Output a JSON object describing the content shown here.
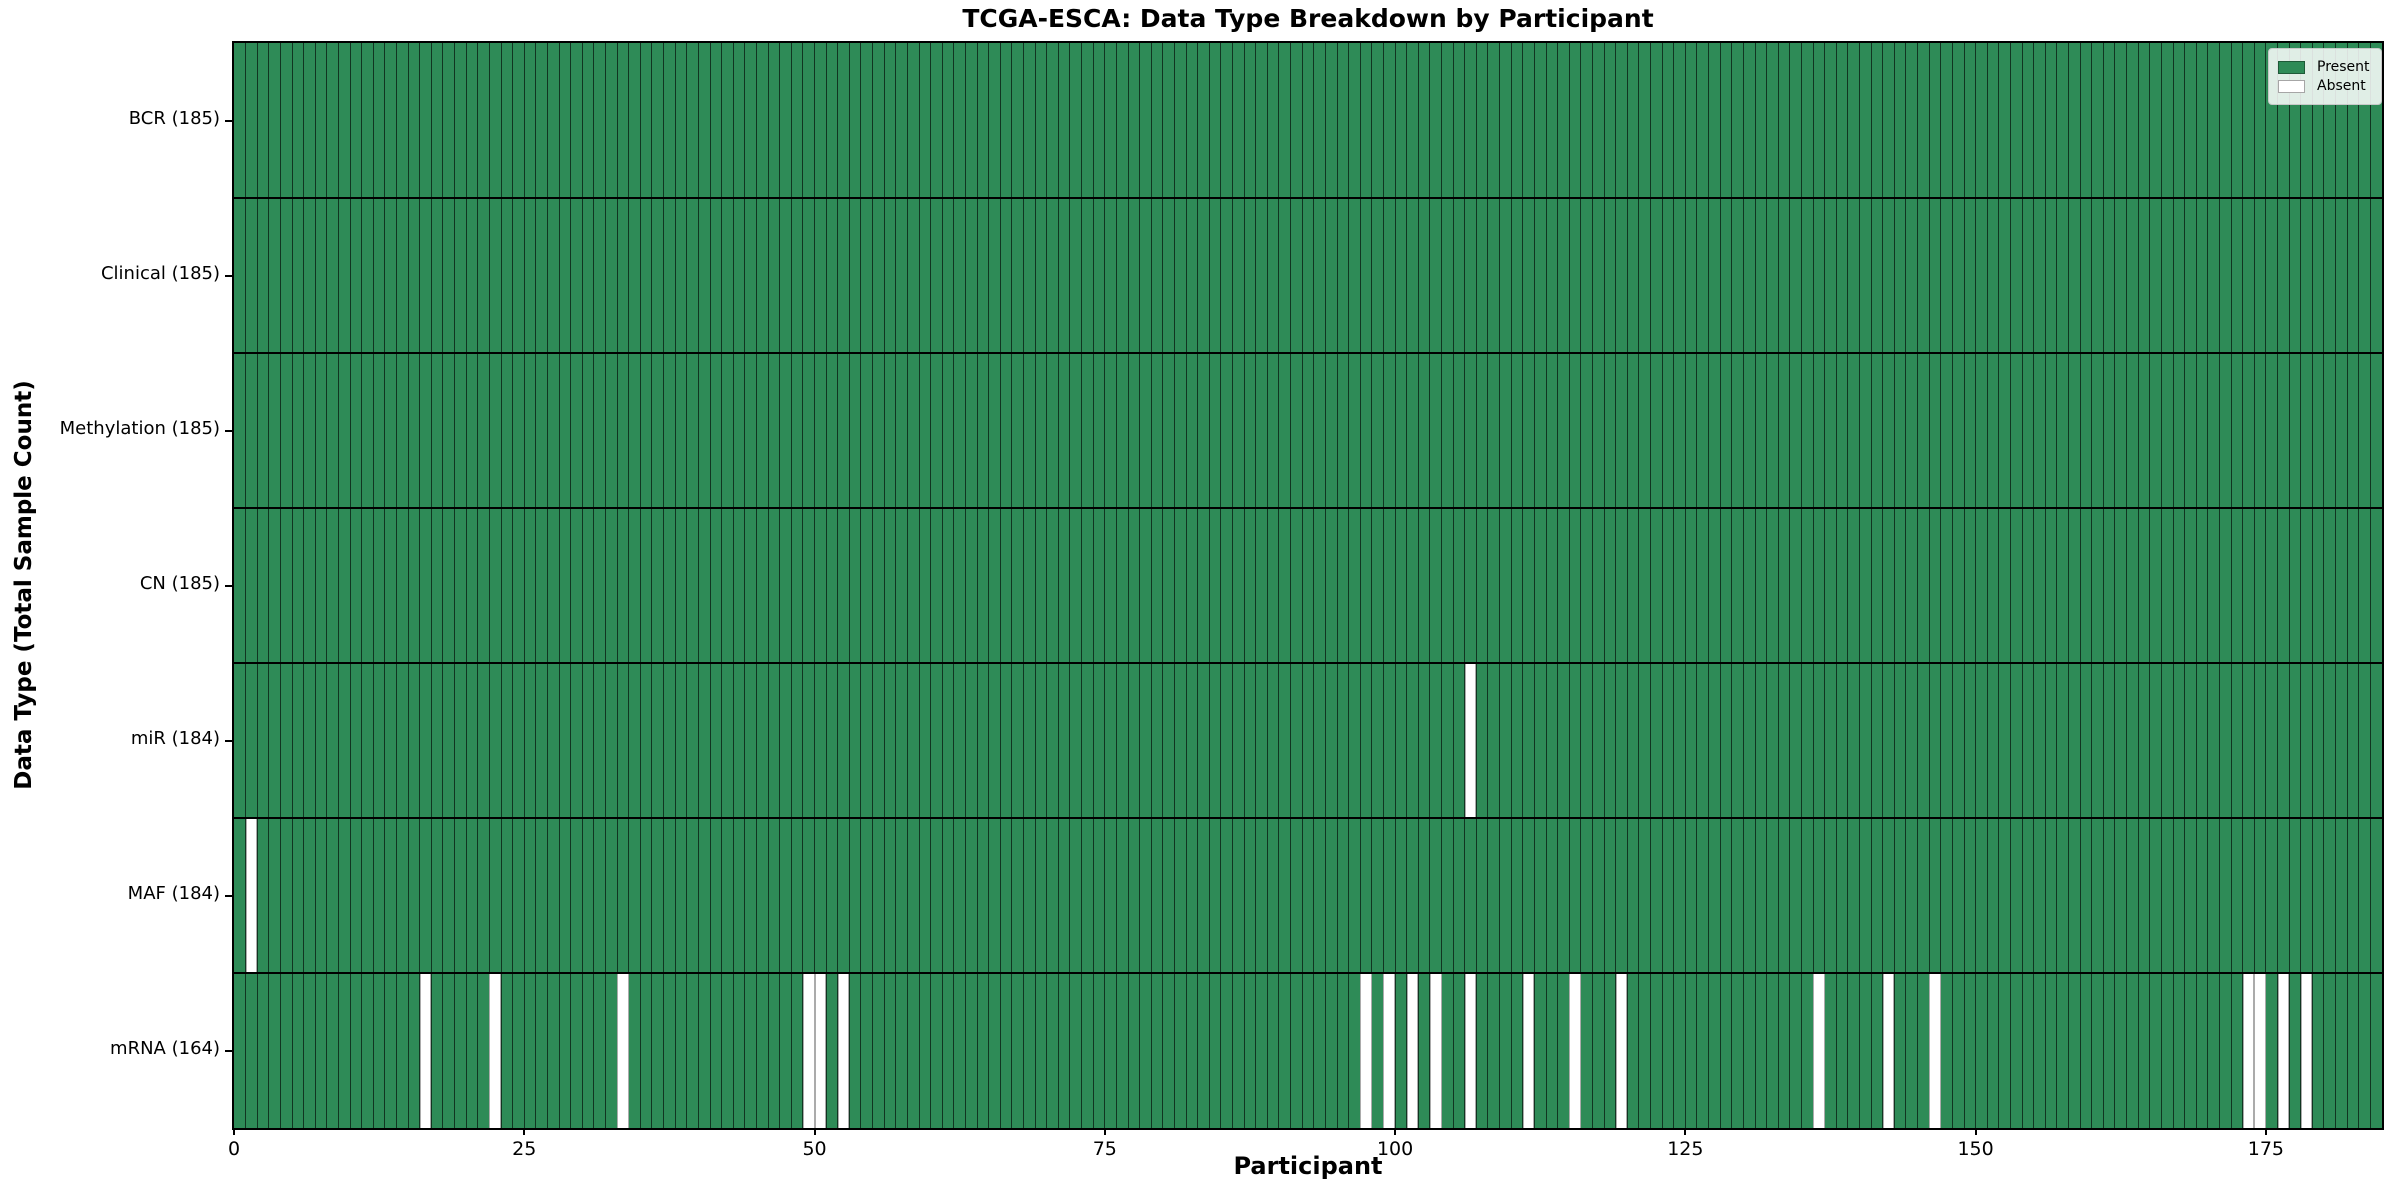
{
  "chart_data": {
    "type": "heatmap",
    "title": "TCGA-ESCA: Data Type Breakdown by Participant",
    "xlabel": "Participant",
    "ylabel": "Data Type (Total Sample Count)",
    "n_participants": 185,
    "x_ticks": [
      0,
      25,
      50,
      75,
      100,
      125,
      150,
      175
    ],
    "x_range": [
      0,
      185
    ],
    "grid": "column-separators",
    "legend_position": "upper-right",
    "colors": {
      "present": "#2e8b57",
      "absent": "#ffffff"
    },
    "legend": [
      {
        "label": "Present",
        "color": "#2e8b57"
      },
      {
        "label": "Absent",
        "color": "#ffffff"
      }
    ],
    "rows": [
      {
        "label": "BCR (185)",
        "data_type": "BCR",
        "total": 185,
        "absent_participants": []
      },
      {
        "label": "Clinical (185)",
        "data_type": "Clinical",
        "total": 185,
        "absent_participants": []
      },
      {
        "label": "Methylation (185)",
        "data_type": "Methylation",
        "total": 185,
        "absent_participants": []
      },
      {
        "label": "CN (185)",
        "data_type": "CN",
        "total": 185,
        "absent_participants": []
      },
      {
        "label": "miR (184)",
        "data_type": "miR",
        "total": 184,
        "absent_participants": [
          106
        ]
      },
      {
        "label": "MAF (184)",
        "data_type": "MAF",
        "total": 184,
        "absent_participants": [
          1
        ]
      },
      {
        "label": "mRNA (164)",
        "data_type": "mRNA",
        "total": 164,
        "absent_participants": [
          16,
          22,
          33,
          49,
          50,
          52,
          97,
          99,
          101,
          103,
          106,
          111,
          115,
          119,
          136,
          142,
          146,
          173,
          174,
          176,
          178
        ]
      }
    ]
  }
}
